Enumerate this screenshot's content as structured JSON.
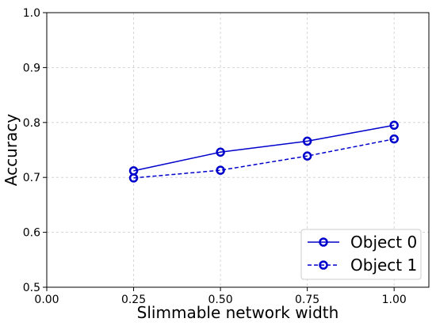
{
  "chart_data": {
    "type": "line",
    "title": "",
    "xlabel": "Slimmable network width",
    "ylabel": "Accuracy",
    "xlim": [
      0.0,
      1.1
    ],
    "ylim": [
      0.5,
      1.0
    ],
    "xticks": [
      0.0,
      0.25,
      0.5,
      0.75,
      1.0
    ],
    "xtick_labels": [
      "0.00",
      "0.25",
      "0.50",
      "0.75",
      "1.00"
    ],
    "yticks": [
      0.5,
      0.6,
      0.7,
      0.8,
      0.9,
      1.0
    ],
    "ytick_labels": [
      "0.5",
      "0.6",
      "0.7",
      "0.8",
      "0.9",
      "1.0"
    ],
    "grid": true,
    "legend_position": "bottom-right",
    "x": [
      0.25,
      0.5,
      0.75,
      1.0
    ],
    "series": [
      {
        "name": "Object 0",
        "values": [
          0.712,
          0.746,
          0.766,
          0.795
        ],
        "color": "#0000cc",
        "linestyle": "solid",
        "marker": "circle-open"
      },
      {
        "name": "Object 1",
        "values": [
          0.699,
          0.713,
          0.739,
          0.77
        ],
        "color": "#0000cc",
        "linestyle": "dashed",
        "marker": "circle-open"
      }
    ]
  }
}
